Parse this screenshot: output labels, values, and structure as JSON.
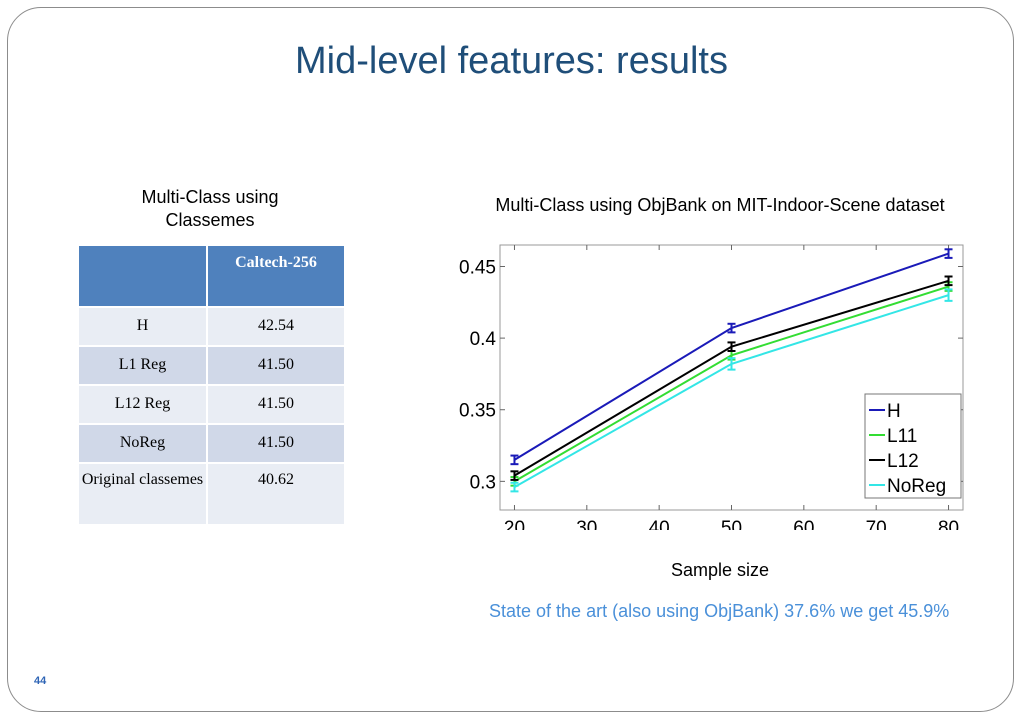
{
  "slide": {
    "title": "Mid-level features: results",
    "page_number": "44",
    "note": "State of the art (also using ObjBank) 37.6% we get 45.9%"
  },
  "table": {
    "caption": "Multi-Class using Classemes",
    "header": [
      "",
      "Caltech-256"
    ],
    "rows": [
      {
        "label": "H",
        "value": "42.54"
      },
      {
        "label": "L1 Reg",
        "value": "41.50"
      },
      {
        "label": "L12 Reg",
        "value": "41.50"
      },
      {
        "label": "NoReg",
        "value": "41.50"
      },
      {
        "label": "Original classemes",
        "value": "40.62"
      }
    ]
  },
  "chart_data": {
    "type": "line",
    "title": "Multi-Class using ObjBank on MIT-Indoor-Scene dataset",
    "xlabel": "Sample size",
    "ylabel": "",
    "x": [
      20,
      50,
      80
    ],
    "xlim": [
      18,
      82
    ],
    "ylim": [
      0.28,
      0.465
    ],
    "xticks": [
      "20",
      "30",
      "40",
      "50",
      "60",
      "70",
      "80"
    ],
    "yticks": [
      "0.3",
      "0.35",
      "0.4",
      "0.45"
    ],
    "legend_position": "bottom-right",
    "grid": false,
    "series": [
      {
        "name": "H",
        "color": "#1a1ab8",
        "values": [
          0.315,
          0.407,
          0.459
        ],
        "errors": [
          0.003,
          0.003,
          0.003
        ]
      },
      {
        "name": "L11",
        "color": "#33dd33",
        "values": [
          0.3,
          0.388,
          0.436
        ],
        "errors": [
          0.003,
          0.003,
          0.003
        ]
      },
      {
        "name": "L12",
        "color": "#000000",
        "values": [
          0.304,
          0.394,
          0.44
        ],
        "errors": [
          0.003,
          0.003,
          0.003
        ]
      },
      {
        "name": "NoReg",
        "color": "#33e6e6",
        "values": [
          0.296,
          0.382,
          0.43
        ],
        "errors": [
          0.003,
          0.004,
          0.004
        ]
      }
    ]
  }
}
